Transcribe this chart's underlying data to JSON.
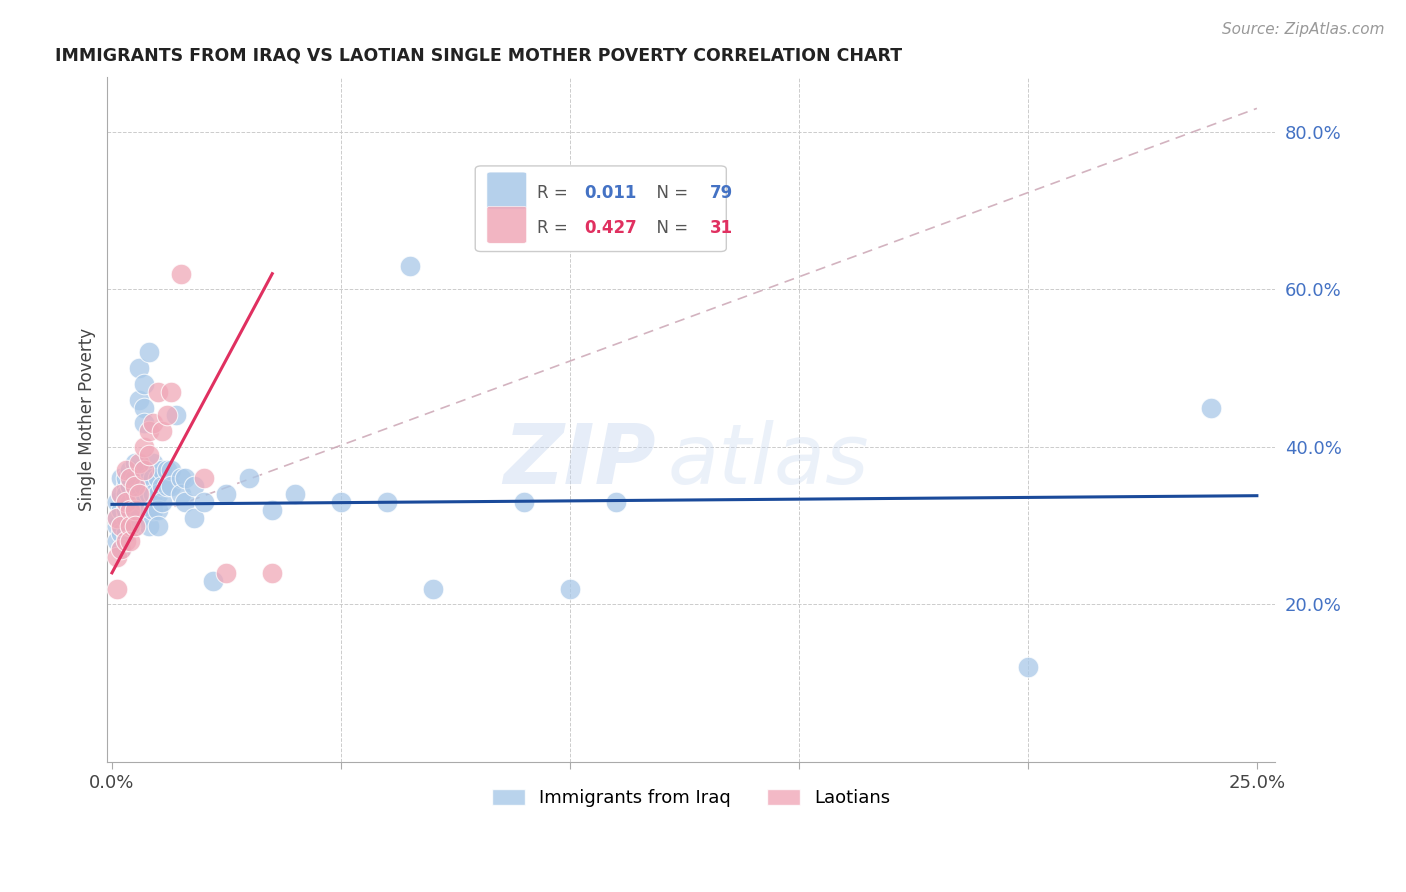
{
  "title": "IMMIGRANTS FROM IRAQ VS LAOTIAN SINGLE MOTHER POVERTY CORRELATION CHART",
  "source": "Source: ZipAtlas.com",
  "ylabel": "Single Mother Poverty",
  "legend1_label": "Immigrants from Iraq",
  "legend2_label": "Laotians",
  "r1": "0.011",
  "n1": "79",
  "r2": "0.427",
  "n2": "31",
  "watermark_zip": "ZIP",
  "watermark_atlas": "atlas",
  "blue_color": "#a8c8e8",
  "pink_color": "#f0a8b8",
  "line_blue": "#1a4a9a",
  "line_pink": "#e03060",
  "diag_line_color": "#c8a0b0",
  "xlim": [
    0.0,
    0.25
  ],
  "ylim": [
    0.0,
    0.85
  ],
  "iraq_x": [
    0.001,
    0.001,
    0.001,
    0.001,
    0.002,
    0.002,
    0.002,
    0.002,
    0.002,
    0.003,
    0.003,
    0.003,
    0.003,
    0.003,
    0.003,
    0.003,
    0.004,
    0.004,
    0.004,
    0.004,
    0.004,
    0.004,
    0.005,
    0.005,
    0.005,
    0.005,
    0.005,
    0.006,
    0.006,
    0.006,
    0.006,
    0.007,
    0.007,
    0.007,
    0.007,
    0.007,
    0.007,
    0.008,
    0.008,
    0.008,
    0.008,
    0.008,
    0.009,
    0.009,
    0.009,
    0.009,
    0.01,
    0.01,
    0.01,
    0.01,
    0.011,
    0.011,
    0.011,
    0.012,
    0.012,
    0.013,
    0.013,
    0.014,
    0.015,
    0.015,
    0.016,
    0.016,
    0.018,
    0.018,
    0.02,
    0.022,
    0.025,
    0.03,
    0.035,
    0.04,
    0.05,
    0.06,
    0.065,
    0.07,
    0.09,
    0.1,
    0.11,
    0.2,
    0.24
  ],
  "iraq_y": [
    0.3,
    0.33,
    0.31,
    0.28,
    0.34,
    0.32,
    0.36,
    0.29,
    0.27,
    0.35,
    0.33,
    0.31,
    0.29,
    0.36,
    0.34,
    0.32,
    0.35,
    0.33,
    0.31,
    0.37,
    0.35,
    0.3,
    0.36,
    0.34,
    0.32,
    0.38,
    0.3,
    0.5,
    0.46,
    0.33,
    0.31,
    0.48,
    0.45,
    0.43,
    0.37,
    0.35,
    0.33,
    0.52,
    0.36,
    0.34,
    0.32,
    0.3,
    0.38,
    0.36,
    0.34,
    0.32,
    0.36,
    0.34,
    0.32,
    0.3,
    0.37,
    0.35,
    0.33,
    0.37,
    0.35,
    0.37,
    0.35,
    0.44,
    0.36,
    0.34,
    0.36,
    0.33,
    0.35,
    0.31,
    0.33,
    0.23,
    0.34,
    0.36,
    0.32,
    0.34,
    0.33,
    0.33,
    0.63,
    0.22,
    0.33,
    0.22,
    0.33,
    0.12,
    0.45
  ],
  "laos_x": [
    0.001,
    0.001,
    0.001,
    0.002,
    0.002,
    0.002,
    0.003,
    0.003,
    0.003,
    0.004,
    0.004,
    0.004,
    0.004,
    0.005,
    0.005,
    0.005,
    0.006,
    0.006,
    0.007,
    0.007,
    0.008,
    0.008,
    0.009,
    0.01,
    0.011,
    0.012,
    0.013,
    0.015,
    0.02,
    0.025,
    0.035
  ],
  "laos_y": [
    0.31,
    0.26,
    0.22,
    0.34,
    0.3,
    0.27,
    0.37,
    0.33,
    0.28,
    0.36,
    0.32,
    0.3,
    0.28,
    0.35,
    0.32,
    0.3,
    0.38,
    0.34,
    0.4,
    0.37,
    0.42,
    0.39,
    0.43,
    0.47,
    0.42,
    0.44,
    0.47,
    0.62,
    0.36,
    0.24,
    0.24
  ]
}
